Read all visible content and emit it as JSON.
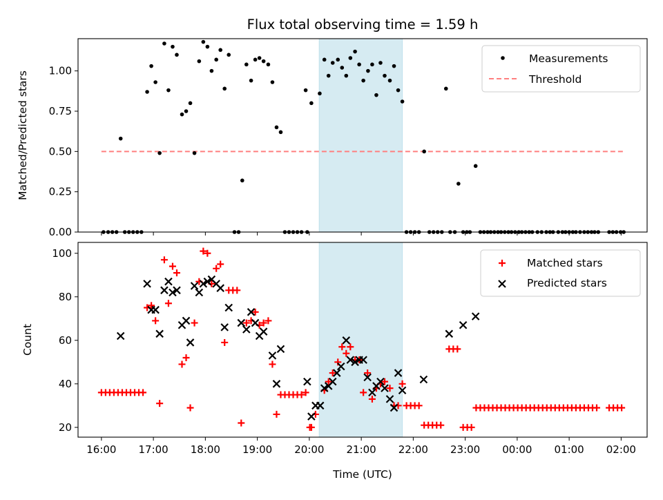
{
  "chart_data": [
    {
      "type": "scatter",
      "title": "Flux total observing time = 1.59 h",
      "xlabel": "",
      "ylabel": "Matched/Predicted stars",
      "x_unit": "hours since 16:00 UTC",
      "xlim": [
        -0.45,
        10.5
      ],
      "ylim": [
        0,
        1.2
      ],
      "yticks": [
        0.0,
        0.25,
        0.5,
        0.75,
        1.0
      ],
      "ytick_labels": [
        "0.00",
        "0.25",
        "0.50",
        "0.75",
        "1.00"
      ],
      "xticks": [
        0,
        1,
        2,
        3,
        4,
        5,
        6,
        7,
        8,
        9,
        10
      ],
      "xtick_labels": [],
      "shaded_span": {
        "x0": 4.19,
        "x1": 5.79,
        "color": "#add8e6"
      },
      "legend": {
        "placement": "top-right",
        "entries": [
          "Measurements",
          "Threshold"
        ]
      },
      "threshold": {
        "name": "Threshold",
        "y": 0.5,
        "x0": 0.0,
        "x1": 10.05,
        "color": "#ff7f7f",
        "style": "dashed"
      },
      "series": [
        {
          "name": "Measurements",
          "marker": "dot",
          "color": "#000000",
          "x": [
            0.04,
            0.13,
            0.21,
            0.29,
            0.45,
            0.53,
            0.61,
            0.69,
            0.77,
            0.37,
            0.88,
            0.96,
            1.04,
            1.12,
            1.21,
            1.29,
            1.37,
            1.45,
            1.55,
            1.63,
            1.71,
            1.79,
            1.88,
            1.96,
            2.04,
            2.12,
            2.21,
            2.29,
            2.37,
            2.45,
            2.56,
            2.64,
            2.71,
            2.79,
            2.88,
            2.96,
            3.04,
            3.12,
            3.21,
            3.29,
            3.37,
            3.45,
            3.53,
            3.61,
            3.69,
            3.77,
            3.85,
            3.93,
            3.96,
            4.04,
            4.2,
            4.29,
            4.37,
            4.45,
            4.55,
            4.63,
            4.71,
            4.79,
            4.88,
            4.96,
            5.04,
            5.13,
            5.21,
            5.29,
            5.37,
            5.45,
            5.55,
            5.63,
            5.71,
            5.79,
            5.87,
            5.95,
            6.03,
            6.11,
            6.21,
            6.31,
            6.39,
            6.47,
            6.55,
            6.63,
            6.71,
            6.8,
            6.87,
            6.96,
            7.03,
            7.09,
            7.2,
            7.29,
            7.36,
            7.43,
            7.49,
            7.56,
            7.63,
            7.69,
            7.76,
            7.83,
            7.89,
            7.96,
            8.03,
            8.09,
            8.16,
            8.23,
            8.29,
            8.39,
            8.47,
            8.56,
            8.63,
            8.69,
            8.79,
            8.87,
            8.93,
            9.0,
            9.07,
            9.13,
            9.21,
            9.29,
            9.36,
            9.43,
            9.49,
            9.56,
            9.77,
            9.84,
            9.91,
            9.99,
            10.05
          ],
          "y": [
            0,
            0,
            0,
            0,
            0,
            0,
            0,
            0,
            0,
            0.58,
            0.87,
            1.03,
            0.93,
            0.49,
            1.17,
            0.88,
            1.15,
            1.1,
            0.73,
            0.75,
            0.8,
            0.49,
            1.06,
            1.18,
            1.15,
            1.0,
            1.07,
            1.13,
            0.89,
            1.1,
            0,
            0,
            0.32,
            1.04,
            0.94,
            1.07,
            1.08,
            1.06,
            1.04,
            0.93,
            0.65,
            0.62,
            0,
            0,
            0,
            0,
            0,
            0.88,
            0,
            0.8,
            0.86,
            1.07,
            0.97,
            1.05,
            1.07,
            1.02,
            0.97,
            1.08,
            1.12,
            1.04,
            0.94,
            1.0,
            1.04,
            0.85,
            1.05,
            0.97,
            0.94,
            1.03,
            0.88,
            0.81,
            0,
            0,
            0,
            0,
            0.5,
            0,
            0,
            0,
            0,
            0.89,
            0,
            0,
            0.3,
            0,
            0,
            0,
            0.41,
            0,
            0,
            0,
            0,
            0,
            0,
            0,
            0,
            0,
            0,
            0,
            0,
            0,
            0,
            0,
            0,
            0,
            0,
            0,
            0,
            0,
            0,
            0,
            0,
            0,
            0,
            0,
            0,
            0,
            0,
            0,
            0,
            0,
            0,
            0,
            0,
            0,
            0
          ]
        }
      ]
    },
    {
      "type": "scatter",
      "title": "",
      "xlabel": "Time (UTC)",
      "ylabel": "Count",
      "x_unit": "hours since 16:00 UTC",
      "xlim": [
        -0.45,
        10.5
      ],
      "ylim": [
        15.5,
        105
      ],
      "yticks": [
        20,
        40,
        60,
        80,
        100
      ],
      "ytick_labels": [
        "20",
        "40",
        "60",
        "80",
        "100"
      ],
      "xticks": [
        0,
        1,
        2,
        3,
        4,
        5,
        6,
        7,
        8,
        9,
        10
      ],
      "xtick_labels": [
        "16:00",
        "17:00",
        "18:00",
        "19:00",
        "20:00",
        "21:00",
        "22:00",
        "23:00",
        "00:00",
        "01:00",
        "02:00"
      ],
      "shaded_span": {
        "x0": 4.19,
        "x1": 5.79,
        "color": "#add8e6"
      },
      "legend": {
        "placement": "top-right",
        "entries": [
          "Matched stars",
          "Predicted stars"
        ]
      },
      "series": [
        {
          "name": "Matched stars",
          "marker": "plus",
          "color": "#ff0000",
          "x": [
            0.0,
            0.08,
            0.16,
            0.24,
            0.32,
            0.4,
            0.48,
            0.56,
            0.64,
            0.72,
            0.8,
            0.88,
            0.96,
            1.04,
            1.12,
            1.21,
            1.29,
            1.37,
            1.45,
            1.55,
            1.63,
            1.71,
            1.79,
            1.88,
            1.96,
            2.04,
            2.12,
            2.21,
            2.29,
            2.37,
            2.45,
            2.53,
            2.61,
            2.69,
            2.79,
            2.88,
            2.96,
            3.04,
            3.12,
            3.21,
            3.29,
            3.37,
            3.45,
            3.53,
            3.61,
            3.69,
            3.77,
            3.85,
            3.93,
            4.01,
            4.04,
            4.12,
            4.29,
            4.37,
            4.45,
            4.55,
            4.63,
            4.71,
            4.79,
            4.88,
            4.96,
            5.04,
            5.12,
            5.21,
            5.29,
            5.37,
            5.45,
            5.55,
            5.63,
            5.71,
            5.79,
            5.87,
            5.95,
            6.03,
            6.11,
            6.21,
            6.29,
            6.37,
            6.45,
            6.53,
            6.69,
            6.77,
            6.85,
            6.96,
            7.04,
            7.12,
            7.21,
            7.29,
            7.37,
            7.45,
            7.53,
            7.61,
            7.69,
            7.77,
            7.85,
            7.93,
            8.01,
            8.09,
            8.17,
            8.25,
            8.33,
            8.41,
            8.49,
            8.57,
            8.65,
            8.73,
            8.81,
            8.89,
            8.97,
            9.05,
            9.13,
            9.21,
            9.29,
            9.37,
            9.45,
            9.53,
            9.77,
            9.85,
            9.93,
            10.01
          ],
          "y": [
            36,
            36,
            36,
            36,
            36,
            36,
            36,
            36,
            36,
            36,
            36,
            75,
            76,
            69,
            31,
            97,
            77,
            94,
            91,
            49,
            52,
            29,
            68,
            87,
            101,
            100,
            86,
            93,
            95,
            59,
            83,
            83,
            83,
            22,
            68,
            69,
            73,
            67,
            68,
            69,
            49,
            26,
            35,
            35,
            35,
            35,
            35,
            35,
            36,
            20,
            20,
            26,
            37,
            41,
            45,
            50,
            57,
            54,
            57,
            51,
            51,
            36,
            45,
            33,
            38,
            40,
            41,
            38,
            30,
            30,
            40,
            30,
            30,
            30,
            30,
            21,
            21,
            21,
            21,
            21,
            56,
            56,
            56,
            20,
            20,
            20,
            29,
            29,
            29,
            29,
            29,
            29,
            29,
            29,
            29,
            29,
            29,
            29,
            29,
            29,
            29,
            29,
            29,
            29,
            29,
            29,
            29,
            29,
            29,
            29,
            29,
            29,
            29,
            29,
            29,
            29,
            29,
            29,
            29,
            29
          ],
          "data_label_note": "values approximate, read from plot"
        },
        {
          "name": "Predicted stars",
          "marker": "x",
          "color": "#000000",
          "x": [
            0.37,
            0.88,
            0.96,
            1.04,
            1.12,
            1.21,
            1.29,
            1.37,
            1.45,
            1.55,
            1.63,
            1.71,
            1.79,
            1.88,
            1.96,
            2.04,
            2.12,
            2.21,
            2.29,
            2.37,
            2.45,
            2.69,
            2.79,
            2.88,
            2.96,
            3.04,
            3.12,
            3.29,
            3.37,
            3.45,
            3.96,
            4.04,
            4.12,
            4.21,
            4.29,
            4.37,
            4.45,
            4.53,
            4.61,
            4.71,
            4.79,
            4.88,
            4.96,
            5.04,
            5.12,
            5.21,
            5.29,
            5.37,
            5.45,
            5.55,
            5.63,
            5.71,
            5.79,
            6.2,
            6.69,
            6.96,
            7.2
          ],
          "y": [
            62,
            86,
            74,
            74,
            63,
            83,
            87,
            82,
            83,
            67,
            69,
            59,
            85,
            82,
            86,
            87,
            88,
            86,
            84,
            66,
            75,
            68,
            65,
            73,
            68,
            62,
            64,
            53,
            40,
            56,
            41,
            25,
            30,
            30,
            38,
            39,
            41,
            45,
            48,
            60,
            51,
            50,
            51,
            51,
            43,
            36,
            39,
            41,
            38,
            33,
            29,
            45,
            37,
            42,
            63,
            67,
            71
          ]
        }
      ]
    }
  ]
}
